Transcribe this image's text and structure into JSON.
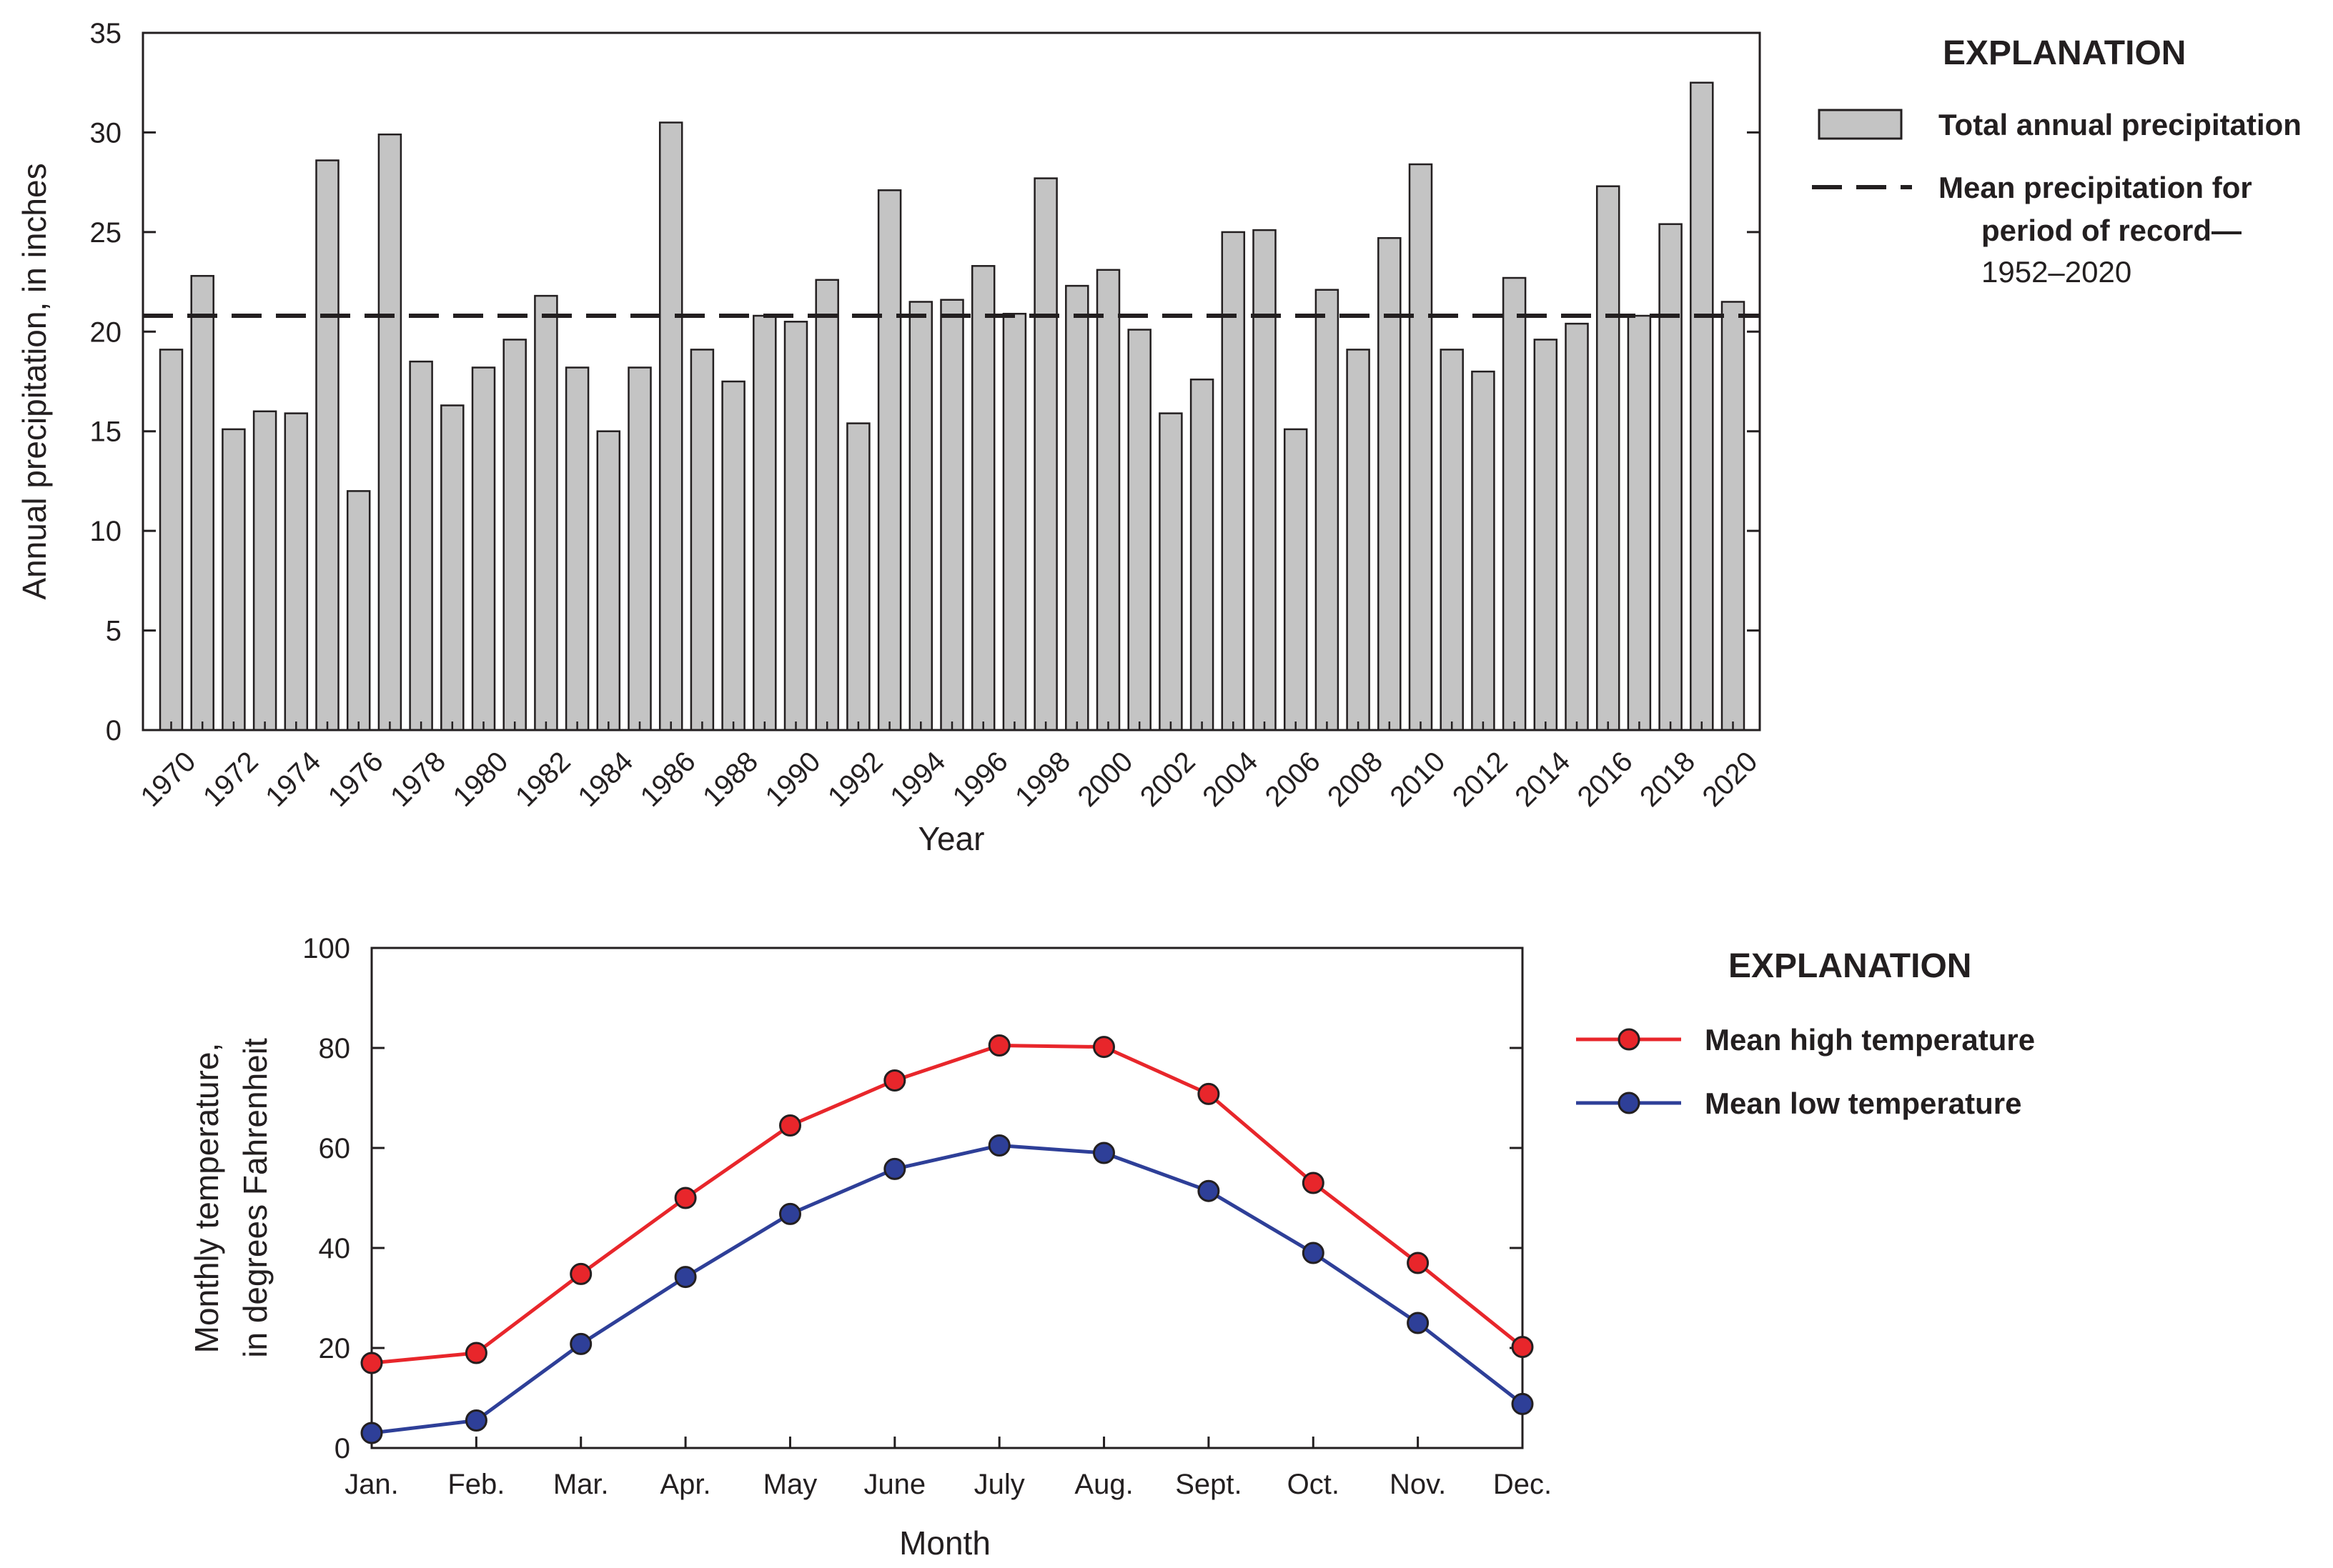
{
  "colors": {
    "bar_fill": "#c4c4c4",
    "bar_stroke": "#231f20",
    "axis": "#231f20",
    "high": "#e8262b",
    "low": "#2e3f98"
  },
  "chart_data": [
    {
      "type": "bar",
      "title": "",
      "xlabel": "Year",
      "ylabel": "Annual precipitation, in inches",
      "ylim": [
        0,
        35
      ],
      "yticks": [
        "0",
        "5",
        "10",
        "15",
        "20",
        "25",
        "30",
        "35"
      ],
      "categories": [
        "1970",
        "1971",
        "1972",
        "1973",
        "1974",
        "1975",
        "1976",
        "1977",
        "1978",
        "1979",
        "1980",
        "1981",
        "1982",
        "1983",
        "1984",
        "1985",
        "1986",
        "1987",
        "1988",
        "1989",
        "1990",
        "1991",
        "1992",
        "1993",
        "1994",
        "1995",
        "1996",
        "1997",
        "1998",
        "1999",
        "2000",
        "2001",
        "2002",
        "2003",
        "2004",
        "2005",
        "2006",
        "2007",
        "2008",
        "2009",
        "2010",
        "2011",
        "2012",
        "2013",
        "2014",
        "2015",
        "2016",
        "2017",
        "2018",
        "2019",
        "2020"
      ],
      "xtick_labels": [
        "1970",
        "1972",
        "1974",
        "1976",
        "1978",
        "1980",
        "1982",
        "1984",
        "1986",
        "1988",
        "1990",
        "1992",
        "1994",
        "1996",
        "1998",
        "2000",
        "2002",
        "2004",
        "2006",
        "2008",
        "2010",
        "2012",
        "2014",
        "2016",
        "2018",
        "2020"
      ],
      "values": [
        19.1,
        22.8,
        15.1,
        16.0,
        15.9,
        28.6,
        12.0,
        29.9,
        18.5,
        16.3,
        18.2,
        19.6,
        21.8,
        18.2,
        15.0,
        18.2,
        30.5,
        19.1,
        17.5,
        20.8,
        20.5,
        22.6,
        15.4,
        27.1,
        21.5,
        21.6,
        23.3,
        20.9,
        27.7,
        22.3,
        23.1,
        20.1,
        15.9,
        17.6,
        25.0,
        25.1,
        15.1,
        22.1,
        19.1,
        24.7,
        28.4,
        19.1,
        18.0,
        22.7,
        19.6,
        20.4,
        27.3,
        20.8,
        25.4,
        32.5,
        21.5
      ],
      "mean_line": 20.8,
      "legend": {
        "heading": "EXPLANATION",
        "bar_label": "Total annual precipitation",
        "mean_label_line1": "Mean precipitation for",
        "mean_label_line2": "period of record—",
        "mean_label_line3": "1952–2020"
      }
    },
    {
      "type": "line",
      "title": "",
      "xlabel": "Month",
      "ylabel_line1": "Monthly temperature,",
      "ylabel_line2": "in degrees Fahrenheit",
      "ylim": [
        0,
        100
      ],
      "yticks": [
        "0",
        "20",
        "40",
        "60",
        "80",
        "100"
      ],
      "categories": [
        "Jan.",
        "Feb.",
        "Mar.",
        "Apr.",
        "May",
        "June",
        "July",
        "Aug.",
        "Sept.",
        "Oct.",
        "Nov.",
        "Dec."
      ],
      "series": [
        {
          "name": "Mean high temperature",
          "values": [
            17.0,
            19.0,
            34.8,
            50.0,
            64.5,
            73.5,
            80.5,
            80.2,
            70.8,
            53.0,
            37.0,
            20.2
          ]
        },
        {
          "name": "Mean low temperature",
          "values": [
            3.0,
            5.5,
            20.8,
            34.2,
            46.8,
            55.8,
            60.5,
            59.0,
            51.4,
            39.0,
            25.0,
            8.8
          ]
        }
      ],
      "legend": {
        "heading": "EXPLANATION"
      }
    }
  ]
}
